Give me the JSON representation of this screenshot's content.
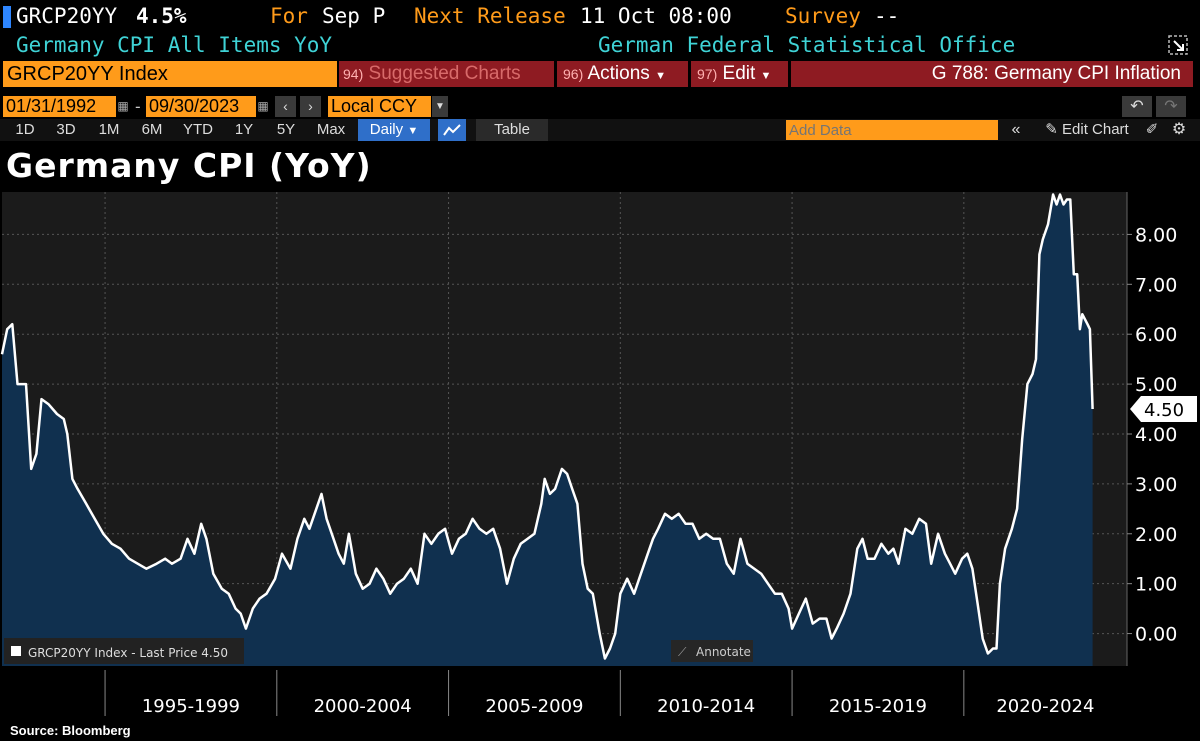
{
  "header": {
    "ticker": "GRCP20YY",
    "last_value": "4.5%",
    "for_label": "For",
    "for_value": "Sep P",
    "next_release_label": "Next Release",
    "next_release_value": "11 Oct 08:00",
    "survey_label": "Survey",
    "survey_value": "--",
    "description": "Germany CPI All Items YoY",
    "source_agency": "German Federal Statistical Office"
  },
  "toolbar": {
    "security": "GRCP20YY Index",
    "suggested_num": "94)",
    "suggested_label": "Suggested Charts",
    "actions_num": "96)",
    "actions_label": "Actions",
    "edit_num": "97)",
    "edit_label": "Edit",
    "chart_name": "G 788: Germany CPI Inflation",
    "start_date": "01/31/1992",
    "end_date": "09/30/2023",
    "currency": "Local CCY",
    "ranges": [
      "1D",
      "3D",
      "1M",
      "6M",
      "YTD",
      "1Y",
      "5Y",
      "Max"
    ],
    "frequency": "Daily",
    "table_label": "Table",
    "add_data_placeholder": "Add Data",
    "edit_chart_label": "Edit Chart"
  },
  "colors": {
    "accent": "#ff9b1a",
    "red_button": "#8e1b22",
    "cyan_text": "#3fd3d6",
    "plot_bg": "#1b1b1b",
    "area_fill": "#10304f",
    "line": "#ffffff"
  },
  "legend": {
    "text": "GRCP20YY Index - Last Price 4.50",
    "annotate": "Annotate"
  },
  "source_note": "Source: Bloomberg",
  "chart_data": {
    "type": "area",
    "title": "Germany CPI (YoY)",
    "series_name": "GRCP20YY Index",
    "last_price_label": "4.50",
    "y_ticks": [
      "0.00",
      "1.00",
      "2.00",
      "3.00",
      "4.00",
      "5.00",
      "6.00",
      "7.00",
      "8.00"
    ],
    "ylim": [
      -0.65,
      8.85
    ],
    "x_range": [
      1992.0,
      2024.75
    ],
    "x_period_labels": [
      "1995-1999",
      "2000-2004",
      "2005-2009",
      "2010-2014",
      "2015-2019",
      "2020-2024"
    ],
    "x_period_boundaries": [
      1995.0,
      2000.0,
      2005.0,
      2010.0,
      2015.0,
      2020.0,
      2025.0
    ],
    "points": [
      [
        1992.0,
        5.6
      ],
      [
        1992.15,
        6.1
      ],
      [
        1992.3,
        6.2
      ],
      [
        1992.45,
        5.0
      ],
      [
        1992.7,
        5.0
      ],
      [
        1992.85,
        3.3
      ],
      [
        1993.0,
        3.6
      ],
      [
        1993.15,
        4.7
      ],
      [
        1993.35,
        4.6
      ],
      [
        1993.6,
        4.4
      ],
      [
        1993.8,
        4.3
      ],
      [
        1993.9,
        4.0
      ],
      [
        1994.05,
        3.1
      ],
      [
        1994.2,
        2.9
      ],
      [
        1994.45,
        2.6
      ],
      [
        1994.7,
        2.3
      ],
      [
        1994.95,
        2.0
      ],
      [
        1995.2,
        1.8
      ],
      [
        1995.45,
        1.7
      ],
      [
        1995.7,
        1.5
      ],
      [
        1995.95,
        1.4
      ],
      [
        1996.2,
        1.3
      ],
      [
        1996.5,
        1.4
      ],
      [
        1996.75,
        1.5
      ],
      [
        1996.95,
        1.4
      ],
      [
        1997.2,
        1.5
      ],
      [
        1997.4,
        1.9
      ],
      [
        1997.6,
        1.6
      ],
      [
        1997.8,
        2.2
      ],
      [
        1997.95,
        1.9
      ],
      [
        1998.15,
        1.2
      ],
      [
        1998.4,
        0.9
      ],
      [
        1998.6,
        0.8
      ],
      [
        1998.8,
        0.5
      ],
      [
        1998.95,
        0.4
      ],
      [
        1999.1,
        0.1
      ],
      [
        1999.3,
        0.5
      ],
      [
        1999.5,
        0.7
      ],
      [
        1999.7,
        0.8
      ],
      [
        1999.95,
        1.1
      ],
      [
        2000.15,
        1.6
      ],
      [
        2000.4,
        1.3
      ],
      [
        2000.6,
        1.9
      ],
      [
        2000.8,
        2.3
      ],
      [
        2000.95,
        2.1
      ],
      [
        2001.1,
        2.4
      ],
      [
        2001.3,
        2.8
      ],
      [
        2001.45,
        2.3
      ],
      [
        2001.6,
        2.0
      ],
      [
        2001.8,
        1.6
      ],
      [
        2001.95,
        1.4
      ],
      [
        2002.1,
        2.0
      ],
      [
        2002.3,
        1.2
      ],
      [
        2002.5,
        0.9
      ],
      [
        2002.7,
        1.0
      ],
      [
        2002.9,
        1.3
      ],
      [
        2003.1,
        1.1
      ],
      [
        2003.3,
        0.8
      ],
      [
        2003.5,
        1.0
      ],
      [
        2003.7,
        1.1
      ],
      [
        2003.9,
        1.3
      ],
      [
        2004.1,
        1.0
      ],
      [
        2004.3,
        2.0
      ],
      [
        2004.5,
        1.8
      ],
      [
        2004.7,
        2.0
      ],
      [
        2004.9,
        2.1
      ],
      [
        2005.1,
        1.6
      ],
      [
        2005.3,
        1.9
      ],
      [
        2005.5,
        2.0
      ],
      [
        2005.7,
        2.3
      ],
      [
        2005.9,
        2.1
      ],
      [
        2006.1,
        2.0
      ],
      [
        2006.3,
        2.1
      ],
      [
        2006.5,
        1.7
      ],
      [
        2006.7,
        1.0
      ],
      [
        2006.9,
        1.5
      ],
      [
        2007.1,
        1.8
      ],
      [
        2007.3,
        1.9
      ],
      [
        2007.5,
        2.0
      ],
      [
        2007.7,
        2.6
      ],
      [
        2007.8,
        3.1
      ],
      [
        2007.95,
        2.8
      ],
      [
        2008.1,
        2.9
      ],
      [
        2008.3,
        3.3
      ],
      [
        2008.45,
        3.2
      ],
      [
        2008.6,
        2.9
      ],
      [
        2008.75,
        2.6
      ],
      [
        2008.9,
        1.4
      ],
      [
        2009.05,
        0.9
      ],
      [
        2009.2,
        0.8
      ],
      [
        2009.4,
        0.0
      ],
      [
        2009.55,
        -0.5
      ],
      [
        2009.7,
        -0.3
      ],
      [
        2009.85,
        0.0
      ],
      [
        2010.0,
        0.8
      ],
      [
        2010.2,
        1.1
      ],
      [
        2010.4,
        0.8
      ],
      [
        2010.6,
        1.2
      ],
      [
        2010.8,
        1.6
      ],
      [
        2010.95,
        1.9
      ],
      [
        2011.1,
        2.1
      ],
      [
        2011.3,
        2.4
      ],
      [
        2011.5,
        2.3
      ],
      [
        2011.7,
        2.4
      ],
      [
        2011.9,
        2.2
      ],
      [
        2012.1,
        2.2
      ],
      [
        2012.3,
        1.9
      ],
      [
        2012.5,
        2.0
      ],
      [
        2012.7,
        1.9
      ],
      [
        2012.9,
        1.9
      ],
      [
        2013.1,
        1.4
      ],
      [
        2013.3,
        1.2
      ],
      [
        2013.5,
        1.9
      ],
      [
        2013.7,
        1.4
      ],
      [
        2013.9,
        1.3
      ],
      [
        2014.1,
        1.2
      ],
      [
        2014.3,
        1.0
      ],
      [
        2014.5,
        0.8
      ],
      [
        2014.7,
        0.8
      ],
      [
        2014.9,
        0.5
      ],
      [
        2015.0,
        0.1
      ],
      [
        2015.2,
        0.4
      ],
      [
        2015.4,
        0.7
      ],
      [
        2015.6,
        0.2
      ],
      [
        2015.8,
        0.3
      ],
      [
        2016.0,
        0.3
      ],
      [
        2016.15,
        -0.1
      ],
      [
        2016.3,
        0.1
      ],
      [
        2016.5,
        0.4
      ],
      [
        2016.7,
        0.8
      ],
      [
        2016.9,
        1.7
      ],
      [
        2017.05,
        1.9
      ],
      [
        2017.2,
        1.5
      ],
      [
        2017.4,
        1.5
      ],
      [
        2017.6,
        1.8
      ],
      [
        2017.8,
        1.6
      ],
      [
        2017.95,
        1.7
      ],
      [
        2018.1,
        1.4
      ],
      [
        2018.3,
        2.1
      ],
      [
        2018.5,
        2.0
      ],
      [
        2018.7,
        2.3
      ],
      [
        2018.9,
        2.2
      ],
      [
        2019.05,
        1.4
      ],
      [
        2019.25,
        2.0
      ],
      [
        2019.45,
        1.6
      ],
      [
        2019.6,
        1.4
      ],
      [
        2019.75,
        1.2
      ],
      [
        2019.95,
        1.5
      ],
      [
        2020.1,
        1.6
      ],
      [
        2020.25,
        1.3
      ],
      [
        2020.4,
        0.6
      ],
      [
        2020.55,
        -0.1
      ],
      [
        2020.7,
        -0.4
      ],
      [
        2020.85,
        -0.3
      ],
      [
        2020.95,
        -0.3
      ],
      [
        2021.05,
        1.0
      ],
      [
        2021.2,
        1.7
      ],
      [
        2021.4,
        2.1
      ],
      [
        2021.55,
        2.5
      ],
      [
        2021.7,
        3.9
      ],
      [
        2021.85,
        5.0
      ],
      [
        2022.0,
        5.2
      ],
      [
        2022.1,
        5.5
      ],
      [
        2022.2,
        7.6
      ],
      [
        2022.3,
        7.9
      ],
      [
        2022.45,
        8.2
      ],
      [
        2022.6,
        8.8
      ],
      [
        2022.7,
        8.6
      ],
      [
        2022.8,
        8.8
      ],
      [
        2022.9,
        8.6
      ],
      [
        2023.0,
        8.7
      ],
      [
        2023.1,
        8.7
      ],
      [
        2023.2,
        7.2
      ],
      [
        2023.3,
        7.2
      ],
      [
        2023.38,
        6.1
      ],
      [
        2023.45,
        6.4
      ],
      [
        2023.6,
        6.2
      ],
      [
        2023.67,
        6.1
      ],
      [
        2023.75,
        4.5
      ]
    ]
  }
}
